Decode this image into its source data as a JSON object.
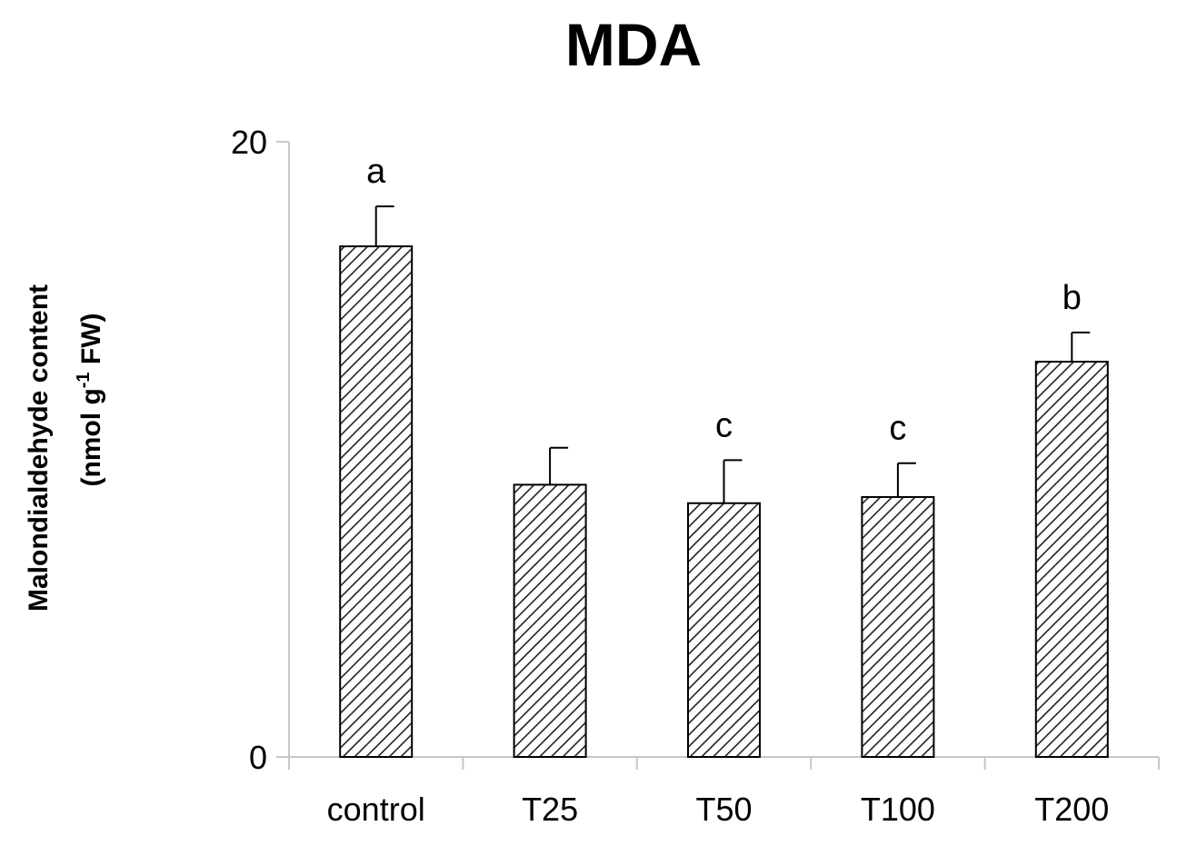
{
  "chart_data": {
    "type": "bar",
    "title": "MDA",
    "ylabel_line1": "Malondialdehyde content",
    "ylabel_line2_prefix": "(nmol g",
    "ylabel_line2_sup": "-1",
    "ylabel_line2_suffix": " FW)",
    "xlabel": "",
    "ylim": [
      0,
      20
    ],
    "yticks": [
      0,
      20
    ],
    "categories": [
      "control",
      "T25",
      "T50",
      "T100",
      "T200"
    ],
    "values": [
      16.6,
      8.85,
      8.25,
      8.45,
      12.85
    ],
    "errors": [
      1.3,
      1.2,
      1.4,
      1.1,
      0.95
    ],
    "significance": [
      "a",
      "",
      "c",
      "c",
      "b"
    ],
    "grid": false,
    "legend": "none",
    "bar_fill_pattern": "diagonal-hatch",
    "bar_color": "#000000",
    "axis_color": "#c8c8c8"
  }
}
